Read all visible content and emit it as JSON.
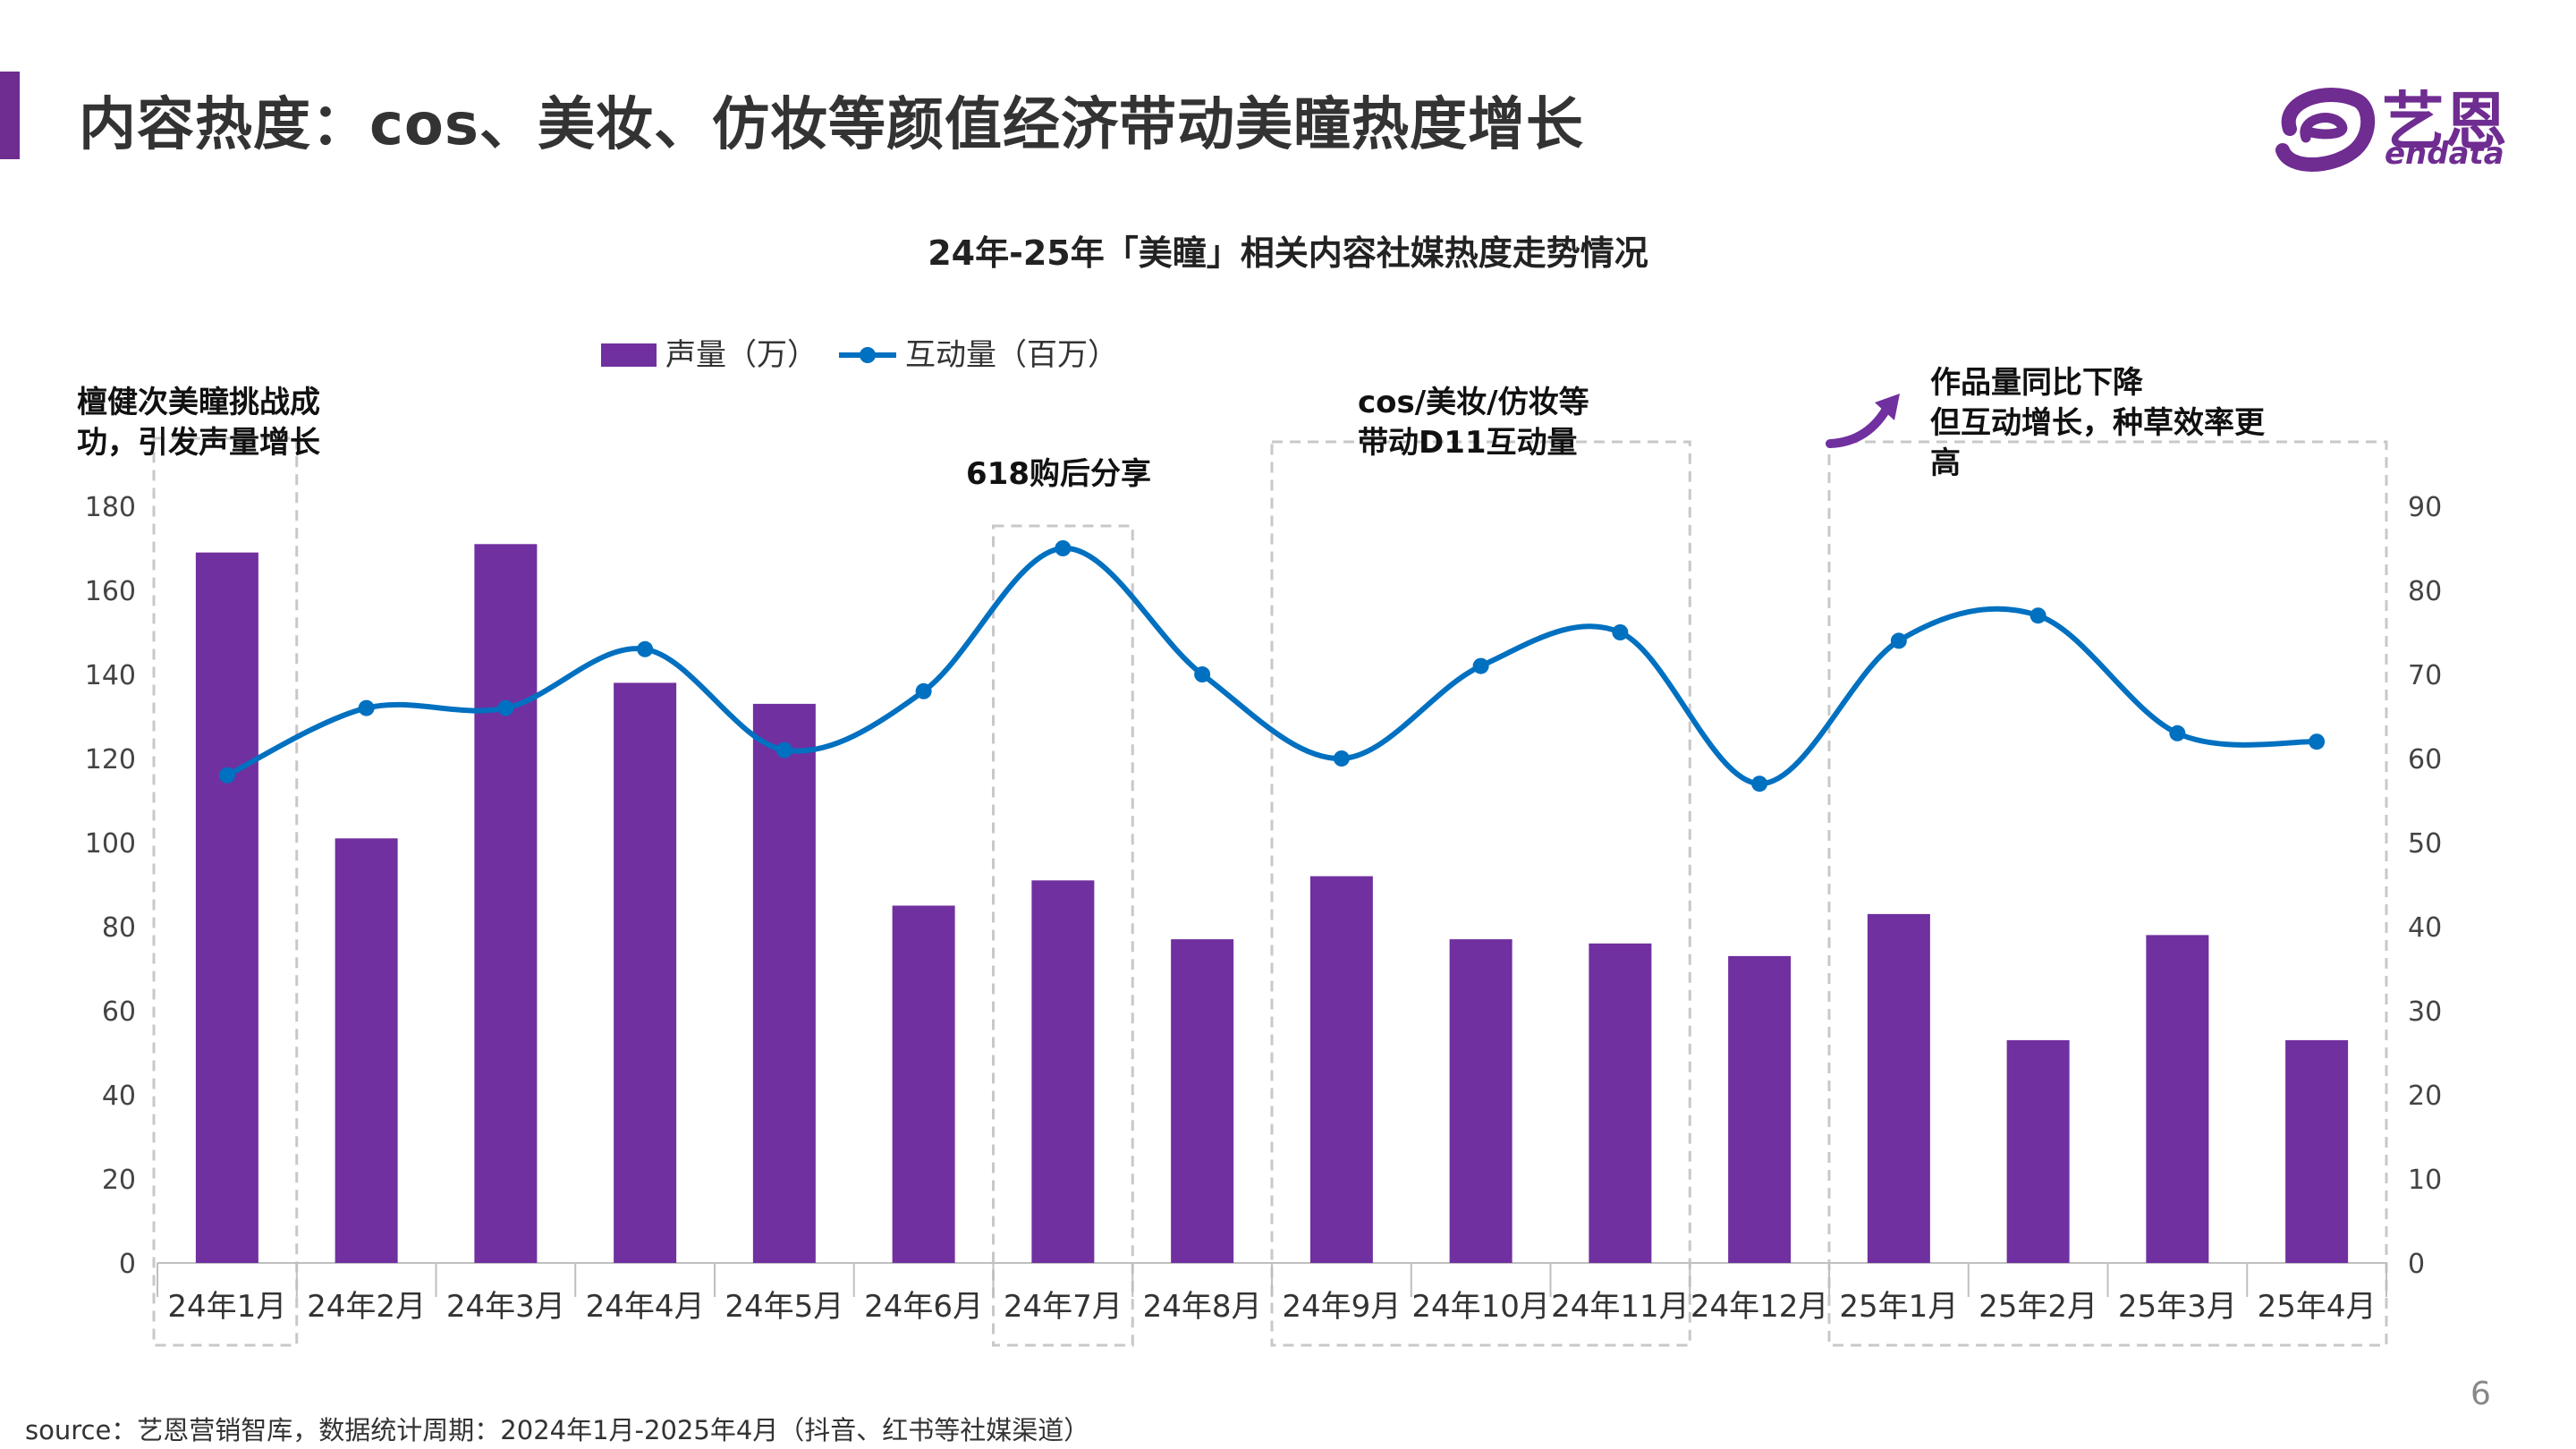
{
  "page": {
    "title": "内容热度：cos、美妆、仿妆等颜值经济带动美瞳热度增长",
    "source": "source：艺恩营销智库，数据统计周期：2024年1月-2025年4月（抖音、红书等社媒渠道）",
    "page_number": "6"
  },
  "logo": {
    "cn": "艺恩",
    "en": "endata",
    "icon": "endata-logo-icon"
  },
  "colors": {
    "bar": "#7030a0",
    "line": "#0070c0",
    "accent": "#6f2c91"
  },
  "chart_data": {
    "type": "bar",
    "title": "24年-25年「美瞳」相关内容社媒热度走势情况",
    "categories": [
      "24年1月",
      "24年2月",
      "24年3月",
      "24年4月",
      "24年5月",
      "24年6月",
      "24年7月",
      "24年8月",
      "24年9月",
      "24年10月",
      "24年11月",
      "24年12月",
      "25年1月",
      "25年2月",
      "25年3月",
      "25年4月"
    ],
    "series": [
      {
        "name": "声量（万）",
        "type": "bar",
        "axis": "left",
        "values": [
          169,
          101,
          171,
          138,
          133,
          85,
          91,
          77,
          92,
          77,
          76,
          73,
          83,
          53,
          78,
          53
        ]
      },
      {
        "name": "互动量（百万）",
        "type": "line",
        "axis": "right",
        "values": [
          58,
          66,
          66,
          73,
          61,
          68,
          85,
          70,
          60,
          71,
          75,
          57,
          74,
          77,
          63,
          62
        ]
      }
    ],
    "y_left": {
      "range": [
        0,
        180
      ],
      "ticks": [
        "0",
        "20",
        "40",
        "60",
        "80",
        "100",
        "120",
        "140",
        "160",
        "180"
      ]
    },
    "y_right": {
      "range": [
        0,
        90
      ],
      "ticks": [
        "0",
        "10",
        "20",
        "30",
        "40",
        "50",
        "60",
        "70",
        "80",
        "90"
      ]
    },
    "legend_position": "top-left",
    "grid": false,
    "annotations": [
      {
        "text_lines": [
          "檀健次美瞳挑战成",
          "功，引发声量增长"
        ],
        "span": [
          "24年1月",
          "24年1月"
        ]
      },
      {
        "text_lines": [
          "618购后分享"
        ],
        "span": [
          "24年7月",
          "24年7月"
        ]
      },
      {
        "text_lines": [
          "cos/美妆/仿妆等",
          "带动D11互动量"
        ],
        "span": [
          "24年9月",
          "24年11月"
        ]
      },
      {
        "text_lines": [
          "作品量同比下降",
          "但互动增长，种草效率更",
          "高"
        ],
        "span": [
          "25年1月",
          "25年4月"
        ]
      }
    ]
  }
}
